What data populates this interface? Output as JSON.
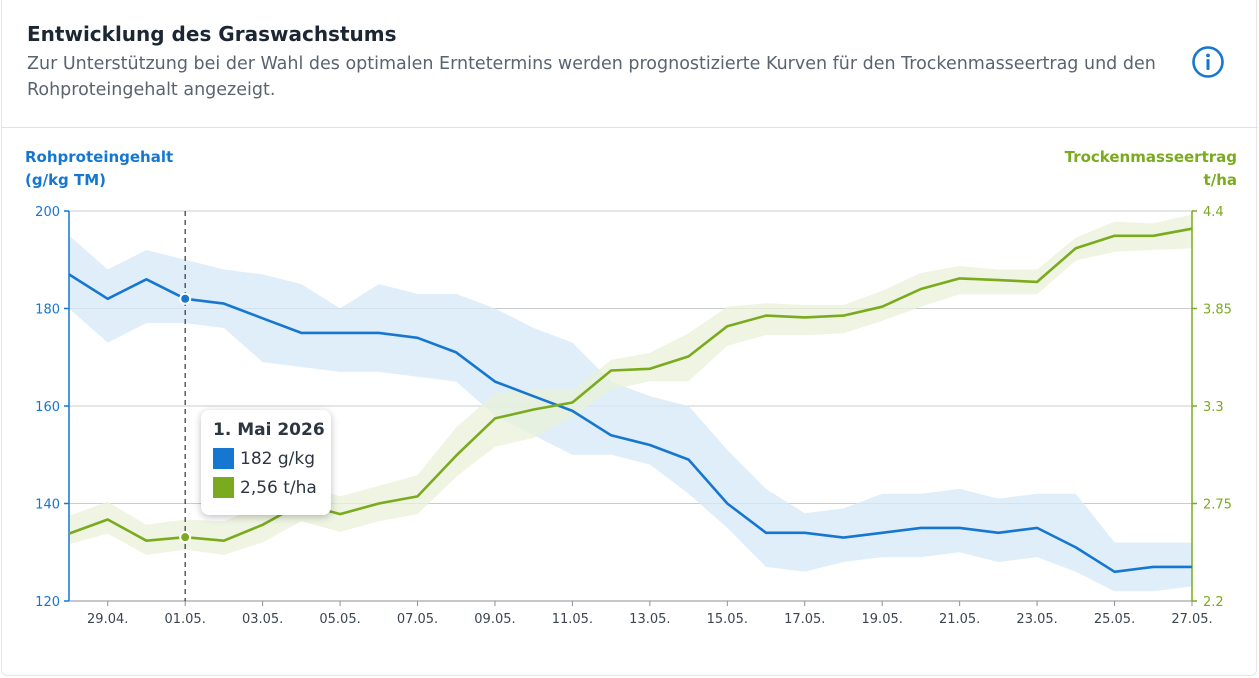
{
  "card": {
    "title": "Entwicklung des Graswachstums",
    "subtitle": "Zur Unterstützung bei der Wahl des optimalen Erntetermins werden prognostizierte Kurven für den Trockenmasseertrag und den Rohproteingehalt angezeigt.",
    "info_icon": "info-circle-icon"
  },
  "chart_data": {
    "type": "line",
    "dual_axis": true,
    "categories": [
      "28.04.",
      "29.04.",
      "30.04.",
      "01.05.",
      "02.05.",
      "03.05.",
      "04.05.",
      "05.05.",
      "06.05.",
      "07.05.",
      "08.05.",
      "09.05.",
      "10.05.",
      "11.05.",
      "12.05.",
      "13.05.",
      "14.05.",
      "15.05.",
      "16.05.",
      "17.05.",
      "18.05.",
      "19.05.",
      "20.05.",
      "21.05.",
      "22.05.",
      "23.05.",
      "24.05.",
      "25.05.",
      "26.05.",
      "27.05."
    ],
    "x_tick_labels": [
      "29.04.",
      "01.05.",
      "03.05.",
      "05.05.",
      "07.05.",
      "09.05.",
      "11.05.",
      "13.05.",
      "15.05.",
      "17.05.",
      "19.05.",
      "21.05.",
      "23.05.",
      "25.05.",
      "27.05."
    ],
    "left_axis": {
      "title_line1": "Rohproteingehalt",
      "title_line2": "(g/kg TM)",
      "ylim": [
        120,
        200
      ],
      "ticks": [
        "120",
        "140",
        "160",
        "180",
        "200"
      ],
      "color": "#1677d1"
    },
    "right_axis": {
      "title_line1": "Trockenmasseertrag",
      "title_line2": "t/ha",
      "ylim": [
        2.2,
        4.4
      ],
      "ticks": [
        "2.2",
        "2.75",
        "3.3",
        "3.85",
        "4.4"
      ],
      "color": "#7aab1f"
    },
    "series": [
      {
        "name": "Rohproteingehalt",
        "axis": "left",
        "color": "#1677d1",
        "band_color": "#d6e8f8",
        "values": [
          187,
          182,
          186,
          182,
          181,
          178,
          175,
          175,
          175,
          174,
          171,
          165,
          162,
          159,
          154,
          152,
          149,
          140,
          134,
          134,
          133,
          134,
          135,
          135,
          134,
          135,
          131,
          126,
          127,
          127
        ],
        "upper": [
          195,
          188,
          192,
          190,
          188,
          187,
          185,
          180,
          185,
          183,
          183,
          180,
          176,
          173,
          165,
          162,
          160,
          151,
          143,
          138,
          139,
          142,
          142,
          143,
          141,
          142,
          142,
          132,
          132,
          132
        ],
        "lower": [
          180,
          173,
          177,
          177,
          176,
          169,
          168,
          167,
          167,
          166,
          165,
          158,
          154,
          150,
          150,
          148,
          142,
          135,
          127,
          126,
          128,
          129,
          129,
          130,
          128,
          129,
          126,
          122,
          122,
          123
        ]
      },
      {
        "name": "Trockenmasseertrag",
        "axis": "right",
        "color": "#7aab1f",
        "band_color": "#e9f2d8",
        "values": [
          2.58,
          2.66,
          2.54,
          2.56,
          2.54,
          2.63,
          2.75,
          2.69,
          2.75,
          2.79,
          3.02,
          3.23,
          3.28,
          3.32,
          3.5,
          3.51,
          3.58,
          3.75,
          3.81,
          3.8,
          3.81,
          3.86,
          3.96,
          4.02,
          4.01,
          4.0,
          4.19,
          4.26,
          4.26,
          4.3
        ],
        "upper": [
          2.68,
          2.76,
          2.63,
          2.66,
          2.65,
          2.74,
          2.86,
          2.79,
          2.85,
          2.91,
          3.18,
          3.37,
          3.39,
          3.39,
          3.56,
          3.6,
          3.71,
          3.86,
          3.88,
          3.87,
          3.87,
          3.95,
          4.05,
          4.09,
          4.07,
          4.07,
          4.25,
          4.34,
          4.33,
          4.38
        ],
        "lower": [
          2.52,
          2.58,
          2.46,
          2.49,
          2.46,
          2.53,
          2.65,
          2.59,
          2.65,
          2.69,
          2.9,
          3.07,
          3.12,
          3.24,
          3.39,
          3.44,
          3.44,
          3.64,
          3.7,
          3.7,
          3.71,
          3.78,
          3.86,
          3.93,
          3.93,
          3.93,
          4.12,
          4.17,
          4.18,
          4.19
        ]
      }
    ],
    "marker_index": 3
  },
  "tooltip": {
    "date": "1. Mai 2026",
    "protein": "182 g/kg",
    "yield": "2,56 t/ha",
    "protein_color": "#1677d1",
    "yield_color": "#7aab1f"
  }
}
